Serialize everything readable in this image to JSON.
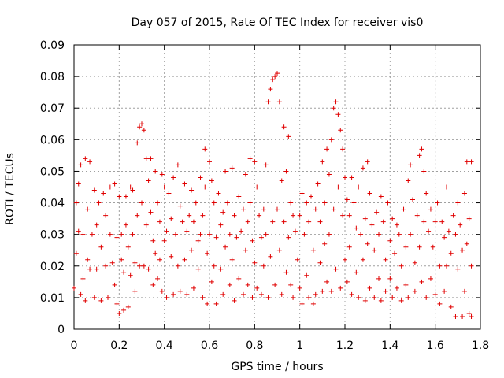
{
  "chart_data": {
    "type": "scatter",
    "title": "Day 057 of 2015, Rate Of TEC Index for receiver vis0",
    "xlabel": "GPS time / hours",
    "ylabel": "ROTI / TECUs",
    "xlim": [
      0,
      1.8
    ],
    "ylim": [
      0,
      0.09
    ],
    "xticks": [
      "0",
      "0.2",
      "0.4",
      "0.6",
      "0.8",
      "1",
      "1.2",
      "1.4",
      "1.6",
      "1.8"
    ],
    "yticks": [
      "0",
      "0.01",
      "0.02",
      "0.03",
      "0.04",
      "0.05",
      "0.06",
      "0.07",
      "0.08",
      "0.09"
    ],
    "grid": true,
    "marker": "+",
    "color": "#e00000",
    "series": [
      {
        "name": "vis0",
        "points": [
          [
            0.0,
            0.013
          ],
          [
            0.01,
            0.024
          ],
          [
            0.01,
            0.04
          ],
          [
            0.02,
            0.031
          ],
          [
            0.02,
            0.046
          ],
          [
            0.03,
            0.011
          ],
          [
            0.03,
            0.052
          ],
          [
            0.04,
            0.03
          ],
          [
            0.04,
            0.016
          ],
          [
            0.05,
            0.054
          ],
          [
            0.05,
            0.009
          ],
          [
            0.06,
            0.022
          ],
          [
            0.06,
            0.038
          ],
          [
            0.07,
            0.019
          ],
          [
            0.07,
            0.053
          ],
          [
            0.08,
            0.03
          ],
          [
            0.09,
            0.01
          ],
          [
            0.09,
            0.044
          ],
          [
            0.1,
            0.033
          ],
          [
            0.1,
            0.019
          ],
          [
            0.11,
            0.04
          ],
          [
            0.12,
            0.009
          ],
          [
            0.12,
            0.026
          ],
          [
            0.13,
            0.043
          ],
          [
            0.14,
            0.036
          ],
          [
            0.14,
            0.02
          ],
          [
            0.15,
            0.01
          ],
          [
            0.16,
            0.03
          ],
          [
            0.16,
            0.045
          ],
          [
            0.17,
            0.021
          ],
          [
            0.18,
            0.046
          ],
          [
            0.18,
            0.014
          ],
          [
            0.19,
            0.008
          ],
          [
            0.19,
            0.029
          ],
          [
            0.2,
            0.042
          ],
          [
            0.2,
            0.005
          ],
          [
            0.21,
            0.03
          ],
          [
            0.21,
            0.022
          ],
          [
            0.22,
            0.018
          ],
          [
            0.22,
            0.006
          ],
          [
            0.23,
            0.033
          ],
          [
            0.23,
            0.042
          ],
          [
            0.24,
            0.026
          ],
          [
            0.24,
            0.007
          ],
          [
            0.25,
            0.045
          ],
          [
            0.25,
            0.017
          ],
          [
            0.26,
            0.044
          ],
          [
            0.26,
            0.03
          ],
          [
            0.27,
            0.021
          ],
          [
            0.27,
            0.012
          ],
          [
            0.28,
            0.059
          ],
          [
            0.28,
            0.036
          ],
          [
            0.29,
            0.064
          ],
          [
            0.29,
            0.02
          ],
          [
            0.3,
            0.065
          ],
          [
            0.3,
            0.04
          ],
          [
            0.31,
            0.063
          ],
          [
            0.31,
            0.02
          ],
          [
            0.32,
            0.054
          ],
          [
            0.32,
            0.033
          ],
          [
            0.33,
            0.047
          ],
          [
            0.33,
            0.019
          ],
          [
            0.34,
            0.054
          ],
          [
            0.34,
            0.037
          ],
          [
            0.35,
            0.028
          ],
          [
            0.35,
            0.014
          ],
          [
            0.36,
            0.05
          ],
          [
            0.36,
            0.024
          ],
          [
            0.37,
            0.04
          ],
          [
            0.37,
            0.016
          ],
          [
            0.38,
            0.034
          ],
          [
            0.38,
            0.022
          ],
          [
            0.39,
            0.049
          ],
          [
            0.39,
            0.012
          ],
          [
            0.4,
            0.045
          ],
          [
            0.4,
            0.028
          ],
          [
            0.41,
            0.031
          ],
          [
            0.41,
            0.01
          ],
          [
            0.42,
            0.043
          ],
          [
            0.43,
            0.035
          ],
          [
            0.43,
            0.023
          ],
          [
            0.44,
            0.048
          ],
          [
            0.44,
            0.011
          ],
          [
            0.45,
            0.03
          ],
          [
            0.46,
            0.052
          ],
          [
            0.46,
            0.02
          ],
          [
            0.47,
            0.039
          ],
          [
            0.47,
            0.012
          ],
          [
            0.48,
            0.034
          ],
          [
            0.49,
            0.046
          ],
          [
            0.49,
            0.022
          ],
          [
            0.5,
            0.031
          ],
          [
            0.5,
            0.011
          ],
          [
            0.51,
            0.036
          ],
          [
            0.52,
            0.044
          ],
          [
            0.52,
            0.025
          ],
          [
            0.53,
            0.034
          ],
          [
            0.53,
            0.013
          ],
          [
            0.54,
            0.04
          ],
          [
            0.55,
            0.028
          ],
          [
            0.55,
            0.019
          ],
          [
            0.56,
            0.048
          ],
          [
            0.56,
            0.03
          ],
          [
            0.57,
            0.036
          ],
          [
            0.57,
            0.01
          ],
          [
            0.58,
            0.057
          ],
          [
            0.58,
            0.045
          ],
          [
            0.59,
            0.024
          ],
          [
            0.59,
            0.008
          ],
          [
            0.6,
            0.053
          ],
          [
            0.6,
            0.03
          ],
          [
            0.61,
            0.047
          ],
          [
            0.61,
            0.015
          ],
          [
            0.62,
            0.04
          ],
          [
            0.62,
            0.02
          ],
          [
            0.63,
            0.029
          ],
          [
            0.63,
            0.008
          ],
          [
            0.64,
            0.043
          ],
          [
            0.65,
            0.033
          ],
          [
            0.65,
            0.019
          ],
          [
            0.66,
            0.037
          ],
          [
            0.66,
            0.011
          ],
          [
            0.67,
            0.05
          ],
          [
            0.67,
            0.026
          ],
          [
            0.68,
            0.04
          ],
          [
            0.69,
            0.03
          ],
          [
            0.69,
            0.014
          ],
          [
            0.7,
            0.051
          ],
          [
            0.7,
            0.022
          ],
          [
            0.71,
            0.036
          ],
          [
            0.71,
            0.009
          ],
          [
            0.72,
            0.029
          ],
          [
            0.73,
            0.042
          ],
          [
            0.73,
            0.016
          ],
          [
            0.74,
            0.031
          ],
          [
            0.75,
            0.038
          ],
          [
            0.75,
            0.011
          ],
          [
            0.76,
            0.049
          ],
          [
            0.76,
            0.025
          ],
          [
            0.77,
            0.034
          ],
          [
            0.77,
            0.014
          ],
          [
            0.78,
            0.054
          ],
          [
            0.78,
            0.04
          ],
          [
            0.79,
            0.028
          ],
          [
            0.79,
            0.01
          ],
          [
            0.8,
            0.053
          ],
          [
            0.8,
            0.021
          ],
          [
            0.81,
            0.045
          ],
          [
            0.81,
            0.013
          ],
          [
            0.82,
            0.036
          ],
          [
            0.83,
            0.029
          ],
          [
            0.83,
            0.011
          ],
          [
            0.84,
            0.038
          ],
          [
            0.84,
            0.02
          ],
          [
            0.85,
            0.052
          ],
          [
            0.85,
            0.03
          ],
          [
            0.86,
            0.072
          ],
          [
            0.86,
            0.01
          ],
          [
            0.87,
            0.076
          ],
          [
            0.87,
            0.023
          ],
          [
            0.88,
            0.079
          ],
          [
            0.88,
            0.034
          ],
          [
            0.89,
            0.08
          ],
          [
            0.89,
            0.014
          ],
          [
            0.9,
            0.081
          ],
          [
            0.9,
            0.038
          ],
          [
            0.91,
            0.072
          ],
          [
            0.91,
            0.025
          ],
          [
            0.92,
            0.047
          ],
          [
            0.92,
            0.011
          ],
          [
            0.93,
            0.064
          ],
          [
            0.93,
            0.034
          ],
          [
            0.94,
            0.05
          ],
          [
            0.94,
            0.018
          ],
          [
            0.95,
            0.061
          ],
          [
            0.95,
            0.029
          ],
          [
            0.96,
            0.04
          ],
          [
            0.96,
            0.014
          ],
          [
            0.97,
            0.036
          ],
          [
            0.97,
            0.01
          ],
          [
            0.98,
            0.031
          ],
          [
            0.99,
            0.022
          ],
          [
            1.0,
            0.036
          ],
          [
            1.0,
            0.013
          ],
          [
            1.01,
            0.043
          ],
          [
            1.01,
            0.008
          ],
          [
            1.02,
            0.03
          ],
          [
            1.03,
            0.04
          ],
          [
            1.03,
            0.017
          ],
          [
            1.04,
            0.034
          ],
          [
            1.04,
            0.01
          ],
          [
            1.05,
            0.042
          ],
          [
            1.06,
            0.025
          ],
          [
            1.06,
            0.008
          ],
          [
            1.07,
            0.038
          ],
          [
            1.07,
            0.011
          ],
          [
            1.08,
            0.046
          ],
          [
            1.09,
            0.034
          ],
          [
            1.09,
            0.021
          ],
          [
            1.1,
            0.053
          ],
          [
            1.1,
            0.012
          ],
          [
            1.11,
            0.04
          ],
          [
            1.11,
            0.027
          ],
          [
            1.12,
            0.057
          ],
          [
            1.12,
            0.015
          ],
          [
            1.13,
            0.049
          ],
          [
            1.13,
            0.03
          ],
          [
            1.14,
            0.06
          ],
          [
            1.14,
            0.012
          ],
          [
            1.15,
            0.07
          ],
          [
            1.15,
            0.038
          ],
          [
            1.16,
            0.072
          ],
          [
            1.16,
            0.019
          ],
          [
            1.17,
            0.068
          ],
          [
            1.17,
            0.045
          ],
          [
            1.18,
            0.063
          ],
          [
            1.18,
            0.013
          ],
          [
            1.19,
            0.057
          ],
          [
            1.19,
            0.036
          ],
          [
            1.2,
            0.048
          ],
          [
            1.2,
            0.022
          ],
          [
            1.21,
            0.041
          ],
          [
            1.21,
            0.015
          ],
          [
            1.22,
            0.036
          ],
          [
            1.22,
            0.026
          ],
          [
            1.23,
            0.048
          ],
          [
            1.23,
            0.011
          ],
          [
            1.24,
            0.04
          ],
          [
            1.25,
            0.032
          ],
          [
            1.25,
            0.018
          ],
          [
            1.26,
            0.045
          ],
          [
            1.26,
            0.01
          ],
          [
            1.27,
            0.03
          ],
          [
            1.28,
            0.051
          ],
          [
            1.28,
            0.022
          ],
          [
            1.29,
            0.035
          ],
          [
            1.29,
            0.009
          ],
          [
            1.3,
            0.053
          ],
          [
            1.3,
            0.027
          ],
          [
            1.31,
            0.043
          ],
          [
            1.31,
            0.013
          ],
          [
            1.32,
            0.033
          ],
          [
            1.33,
            0.025
          ],
          [
            1.33,
            0.01
          ],
          [
            1.34,
            0.037
          ],
          [
            1.35,
            0.03
          ],
          [
            1.35,
            0.016
          ],
          [
            1.36,
            0.042
          ],
          [
            1.36,
            0.009
          ],
          [
            1.37,
            0.034
          ],
          [
            1.38,
            0.022
          ],
          [
            1.38,
            0.012
          ],
          [
            1.39,
            0.04
          ],
          [
            1.4,
            0.028
          ],
          [
            1.4,
            0.016
          ],
          [
            1.41,
            0.035
          ],
          [
            1.41,
            0.01
          ],
          [
            1.42,
            0.024
          ],
          [
            1.43,
            0.033
          ],
          [
            1.43,
            0.013
          ],
          [
            1.44,
            0.03
          ],
          [
            1.45,
            0.02
          ],
          [
            1.45,
            0.009
          ],
          [
            1.46,
            0.038
          ],
          [
            1.47,
            0.026
          ],
          [
            1.47,
            0.014
          ],
          [
            1.48,
            0.047
          ],
          [
            1.48,
            0.01
          ],
          [
            1.49,
            0.052
          ],
          [
            1.49,
            0.03
          ],
          [
            1.5,
            0.041
          ],
          [
            1.51,
            0.021
          ],
          [
            1.51,
            0.012
          ],
          [
            1.52,
            0.036
          ],
          [
            1.53,
            0.055
          ],
          [
            1.53,
            0.026
          ],
          [
            1.54,
            0.057
          ],
          [
            1.54,
            0.015
          ],
          [
            1.55,
            0.05
          ],
          [
            1.55,
            0.034
          ],
          [
            1.56,
            0.043
          ],
          [
            1.56,
            0.01
          ],
          [
            1.57,
            0.031
          ],
          [
            1.58,
            0.038
          ],
          [
            1.58,
            0.016
          ],
          [
            1.59,
            0.026
          ],
          [
            1.6,
            0.034
          ],
          [
            1.6,
            0.011
          ],
          [
            1.61,
            0.04
          ],
          [
            1.62,
            0.02
          ],
          [
            1.62,
            0.008
          ],
          [
            1.63,
            0.034
          ],
          [
            1.64,
            0.029
          ],
          [
            1.64,
            0.012
          ],
          [
            1.65,
            0.045
          ],
          [
            1.65,
            0.02
          ],
          [
            1.66,
            0.031
          ],
          [
            1.67,
            0.024
          ],
          [
            1.67,
            0.007
          ],
          [
            1.68,
            0.036
          ],
          [
            1.69,
            0.03
          ],
          [
            1.69,
            0.004
          ],
          [
            1.7,
            0.04
          ],
          [
            1.7,
            0.019
          ],
          [
            1.71,
            0.033
          ],
          [
            1.72,
            0.025
          ],
          [
            1.72,
            0.004
          ],
          [
            1.73,
            0.043
          ],
          [
            1.73,
            0.012
          ],
          [
            1.74,
            0.053
          ],
          [
            1.74,
            0.027
          ],
          [
            1.75,
            0.035
          ],
          [
            1.75,
            0.005
          ],
          [
            1.76,
            0.053
          ],
          [
            1.76,
            0.02
          ],
          [
            1.76,
            0.004
          ]
        ]
      }
    ]
  }
}
